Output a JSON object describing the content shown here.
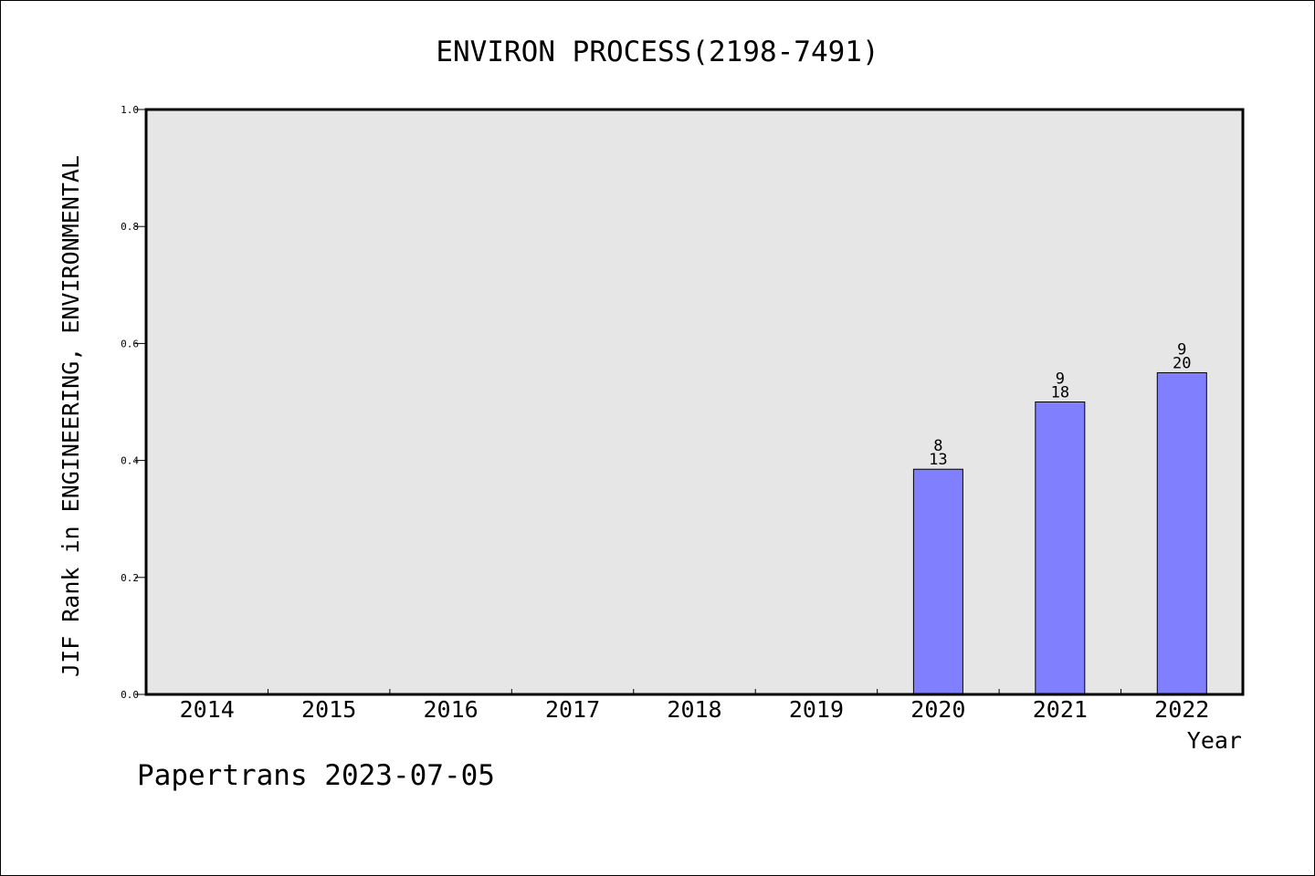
{
  "chart_data": {
    "type": "bar",
    "title": "ENVIRON PROCESS(2198-7491)",
    "xlabel": "Year",
    "ylabel": "JIF Rank in ENGINEERING, ENVIRONMENTAL",
    "categories": [
      "2014",
      "2015",
      "2016",
      "2017",
      "2018",
      "2019",
      "2020",
      "2021",
      "2022"
    ],
    "values": [
      null,
      null,
      null,
      null,
      null,
      null,
      0.385,
      0.5,
      0.55
    ],
    "bar_labels": [
      null,
      null,
      null,
      null,
      null,
      null,
      {
        "rank": "8",
        "total": "13"
      },
      {
        "rank": "9",
        "total": "18"
      },
      {
        "rank": "9",
        "total": "20"
      }
    ],
    "ylim": [
      0,
      1.0
    ],
    "yticks": [
      "0.0",
      "0.2",
      "0.4",
      "0.6",
      "0.8",
      "1.0"
    ],
    "grid": false,
    "colors": {
      "bar": "#8080ff",
      "plot_background": "#e6e6e6",
      "bar_edge": "#000000"
    }
  },
  "footer": {
    "credit": "Papertrans 2023-07-05"
  }
}
